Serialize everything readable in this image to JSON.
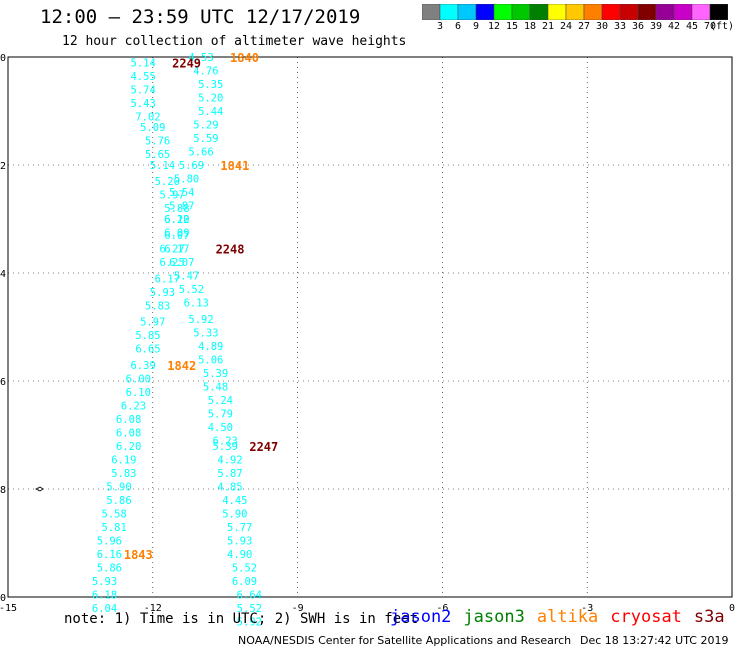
{
  "header": {
    "title": "12:00 – 23:59 UTC 12/17/2019",
    "subtitle": "12 hour collection of altimeter wave heights"
  },
  "legend_scale": {
    "colors": [
      "#808080",
      "#00ffff",
      "#00c8ff",
      "#0000ff",
      "#00ff00",
      "#00c800",
      "#008000",
      "#ffff00",
      "#ffc800",
      "#ff8000",
      "#ff0000",
      "#c80000",
      "#800000",
      "#960096",
      "#c800c8",
      "#ff64ff",
      "#000000"
    ],
    "labels": [
      "3",
      "6",
      "9",
      "12",
      "15",
      "18",
      "21",
      "24",
      "27",
      "30",
      "33",
      "36",
      "39",
      "42",
      "45",
      "70",
      "(ft)"
    ]
  },
  "chart_data": {
    "type": "scatter",
    "xlim": [
      -15,
      0
    ],
    "ylim": [
      -10,
      0
    ],
    "x_ticks": [
      "-15",
      "-12",
      "-9",
      "-6",
      "-3",
      "0"
    ],
    "y_ticks": [
      "0",
      "-2",
      "-4",
      "-6",
      "-8",
      "-10"
    ],
    "grid": true,
    "wave_heights": [
      {
        "x": -12.2,
        "y": -0.1,
        "v": "5.14"
      },
      {
        "x": -11.0,
        "y": 0.0,
        "v": "4.53"
      },
      {
        "x": -10.9,
        "y": -0.25,
        "v": "4.76"
      },
      {
        "x": -12.2,
        "y": -0.35,
        "v": "4.55"
      },
      {
        "x": -10.8,
        "y": -0.5,
        "v": "5.35"
      },
      {
        "x": -12.2,
        "y": -0.6,
        "v": "5.74"
      },
      {
        "x": -10.8,
        "y": -0.75,
        "v": "5.20"
      },
      {
        "x": -12.2,
        "y": -0.85,
        "v": "5.43"
      },
      {
        "x": -10.8,
        "y": -1.0,
        "v": "5.44"
      },
      {
        "x": -12.1,
        "y": -1.1,
        "v": "7.02"
      },
      {
        "x": -10.9,
        "y": -1.25,
        "v": "5.29"
      },
      {
        "x": -12.0,
        "y": -1.3,
        "v": "5.09"
      },
      {
        "x": -10.9,
        "y": -1.5,
        "v": "5.59"
      },
      {
        "x": -11.9,
        "y": -1.55,
        "v": "5.76"
      },
      {
        "x": -11.0,
        "y": -1.75,
        "v": "5.66"
      },
      {
        "x": -11.9,
        "y": -1.8,
        "v": "5.65"
      },
      {
        "x": -11.2,
        "y": -2.0,
        "v": "5.69"
      },
      {
        "x": -11.8,
        "y": -2.0,
        "v": "5.14"
      },
      {
        "x": -11.3,
        "y": -2.25,
        "v": "5.80"
      },
      {
        "x": -11.7,
        "y": -2.3,
        "v": "5.20"
      },
      {
        "x": -11.4,
        "y": -2.5,
        "v": "5.54"
      },
      {
        "x": -11.6,
        "y": -2.55,
        "v": "5.97"
      },
      {
        "x": -11.4,
        "y": -2.75,
        "v": "5.87"
      },
      {
        "x": -11.5,
        "y": -2.8,
        "v": "5.88"
      },
      {
        "x": -11.5,
        "y": -3.0,
        "v": "6.20"
      },
      {
        "x": -11.5,
        "y": -3.0,
        "v": "6.12"
      },
      {
        "x": -11.5,
        "y": -3.25,
        "v": "6.09"
      },
      {
        "x": -11.5,
        "y": -3.3,
        "v": "6.07"
      },
      {
        "x": -11.5,
        "y": -3.55,
        "v": "6.17"
      },
      {
        "x": -11.6,
        "y": -3.55,
        "v": "6.27"
      },
      {
        "x": -11.4,
        "y": -3.8,
        "v": "6.07"
      },
      {
        "x": -11.6,
        "y": -3.8,
        "v": "6.25"
      },
      {
        "x": -11.3,
        "y": -4.05,
        "v": "5.47"
      },
      {
        "x": -11.7,
        "y": -4.1,
        "v": "6.17"
      },
      {
        "x": -11.2,
        "y": -4.3,
        "v": "5.52"
      },
      {
        "x": -11.8,
        "y": -4.35,
        "v": "5.93"
      },
      {
        "x": -11.1,
        "y": -4.55,
        "v": "6.13"
      },
      {
        "x": -11.9,
        "y": -4.6,
        "v": "5.83"
      },
      {
        "x": -11.0,
        "y": -4.85,
        "v": "5.92"
      },
      {
        "x": -12.0,
        "y": -4.9,
        "v": "5.97"
      },
      {
        "x": -10.9,
        "y": -5.1,
        "v": "5.33"
      },
      {
        "x": -12.1,
        "y": -5.15,
        "v": "5.85"
      },
      {
        "x": -10.8,
        "y": -5.35,
        "v": "4.89"
      },
      {
        "x": -12.1,
        "y": -5.4,
        "v": "6.65"
      },
      {
        "x": -10.8,
        "y": -5.6,
        "v": "5.06"
      },
      {
        "x": -12.2,
        "y": -5.7,
        "v": "6.39"
      },
      {
        "x": -10.7,
        "y": -5.85,
        "v": "5.39"
      },
      {
        "x": -12.3,
        "y": -5.95,
        "v": "6.00"
      },
      {
        "x": -10.7,
        "y": -6.1,
        "v": "5.48"
      },
      {
        "x": -12.3,
        "y": -6.2,
        "v": "6.10"
      },
      {
        "x": -10.6,
        "y": -6.35,
        "v": "5.24"
      },
      {
        "x": -12.4,
        "y": -6.45,
        "v": "6.23"
      },
      {
        "x": -10.6,
        "y": -6.6,
        "v": "5.79"
      },
      {
        "x": -12.5,
        "y": -6.7,
        "v": "6.08"
      },
      {
        "x": -10.6,
        "y": -6.85,
        "v": "4.50"
      },
      {
        "x": -12.5,
        "y": -6.95,
        "v": "6.08"
      },
      {
        "x": -10.5,
        "y": -7.1,
        "v": "6.23"
      },
      {
        "x": -12.5,
        "y": -7.2,
        "v": "6.20"
      },
      {
        "x": -10.5,
        "y": -7.2,
        "v": "5.39"
      },
      {
        "x": -12.6,
        "y": -7.45,
        "v": "6.19"
      },
      {
        "x": -10.4,
        "y": -7.45,
        "v": "4.92"
      },
      {
        "x": -12.6,
        "y": -7.7,
        "v": "5.83"
      },
      {
        "x": -10.4,
        "y": -7.7,
        "v": "5.87"
      },
      {
        "x": -12.7,
        "y": -7.95,
        "v": "5.90"
      },
      {
        "x": -10.4,
        "y": -7.95,
        "v": "4.85"
      },
      {
        "x": -12.7,
        "y": -8.2,
        "v": "5.86"
      },
      {
        "x": -10.3,
        "y": -8.2,
        "v": "4.45"
      },
      {
        "x": -12.8,
        "y": -8.45,
        "v": "5.58"
      },
      {
        "x": -10.3,
        "y": -8.45,
        "v": "5.90"
      },
      {
        "x": -12.8,
        "y": -8.7,
        "v": "5.81"
      },
      {
        "x": -10.2,
        "y": -8.7,
        "v": "5.77"
      },
      {
        "x": -12.9,
        "y": -8.95,
        "v": "5.96"
      },
      {
        "x": -10.2,
        "y": -8.95,
        "v": "5.93"
      },
      {
        "x": -12.9,
        "y": -9.2,
        "v": "6.16"
      },
      {
        "x": -10.2,
        "y": -9.2,
        "v": "4.90"
      },
      {
        "x": -12.9,
        "y": -9.45,
        "v": "5.86"
      },
      {
        "x": -10.1,
        "y": -9.45,
        "v": "5.52"
      },
      {
        "x": -13.0,
        "y": -9.7,
        "v": "5.93"
      },
      {
        "x": -10.1,
        "y": -9.7,
        "v": "6.09"
      },
      {
        "x": -13.0,
        "y": -9.95,
        "v": "6.18"
      },
      {
        "x": -10.0,
        "y": -9.95,
        "v": "6.64"
      },
      {
        "x": -13.0,
        "y": -10.2,
        "v": "6.04"
      },
      {
        "x": -10.0,
        "y": -10.2,
        "v": "5.52"
      },
      {
        "x": -10.0,
        "y": -10.45,
        "v": "5.92"
      }
    ],
    "time_labels": [
      {
        "x": -11.3,
        "y": -0.1,
        "t": "2249",
        "color": "#800000"
      },
      {
        "x": -10.1,
        "y": 0.0,
        "t": "1840",
        "color": "#ff8000"
      },
      {
        "x": -10.3,
        "y": -2.0,
        "t": "1841",
        "color": "#ff8000"
      },
      {
        "x": -10.4,
        "y": -3.55,
        "t": "2248",
        "color": "#800000"
      },
      {
        "x": -11.4,
        "y": -5.7,
        "t": "1842",
        "color": "#ff8000"
      },
      {
        "x": -9.7,
        "y": -7.2,
        "t": "2247",
        "color": "#800000"
      },
      {
        "x": -12.3,
        "y": -9.2,
        "t": "1843",
        "color": "#ff8000"
      }
    ]
  },
  "footer": {
    "note": "note: 1) Time is in UTC; 2) SWH is in feet",
    "satellites": [
      {
        "name": "jason2",
        "color": "#0000ff"
      },
      {
        "name": "jason3",
        "color": "#008000"
      },
      {
        "name": "altika",
        "color": "#ff8000"
      },
      {
        "name": "cryosat",
        "color": "#ff0000"
      },
      {
        "name": "s3a",
        "color": "#800000"
      }
    ],
    "credit": "NOAA/NESDIS Center for Satellite Applications and Research",
    "timestamp": "Dec 18 13:27:42 UTC 2019"
  }
}
